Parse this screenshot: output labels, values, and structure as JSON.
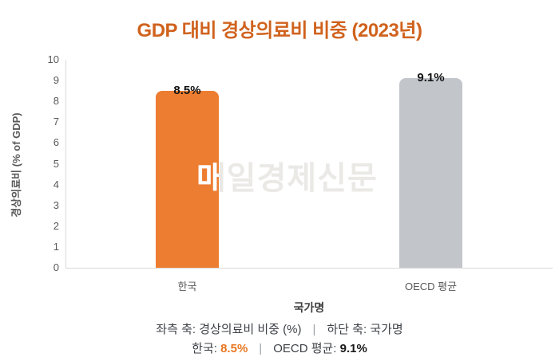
{
  "title": "GDP 대비 경상의료비 비중 (2023년)",
  "watermark_text": "매일경제신문",
  "chart_data": {
    "type": "bar",
    "title": "GDP 대비 경상의료비 비중 (2023년)",
    "categories": [
      "한국",
      "OECD 평균"
    ],
    "values": [
      8.5,
      9.1
    ],
    "data_labels": [
      "8.5%",
      "9.1%"
    ],
    "bar_colors": [
      "#ED7D31",
      "#C2C6CA"
    ],
    "xlabel": "국가명",
    "ylabel": "경상의료비 (% of GDP)",
    "ylim": [
      0,
      10
    ],
    "yticks": [
      "0",
      "1",
      "2",
      "3",
      "4",
      "5",
      "6",
      "7",
      "8",
      "9",
      "10"
    ],
    "grid": false,
    "legend_position": "none"
  },
  "colors": {
    "title": "#d0621d",
    "axis_line": "#d9d9d9",
    "tick_text": "#595959",
    "value_label": "#111111",
    "footer_text": "#3d4147",
    "footer_orange": "#e87722",
    "footer_dark": "#1a1a1a",
    "watermark": "#eae9e6"
  },
  "footer": {
    "line1_left": "좌측 축: 경상의료비 비중 (%)",
    "separator": "|",
    "line1_right": "하단 축: 국가명",
    "line2_korea_label": "한국:",
    "line2_korea_value": "8.5%",
    "line2_oecd_label": "OECD 평균:",
    "line2_oecd_value": "9.1%"
  }
}
